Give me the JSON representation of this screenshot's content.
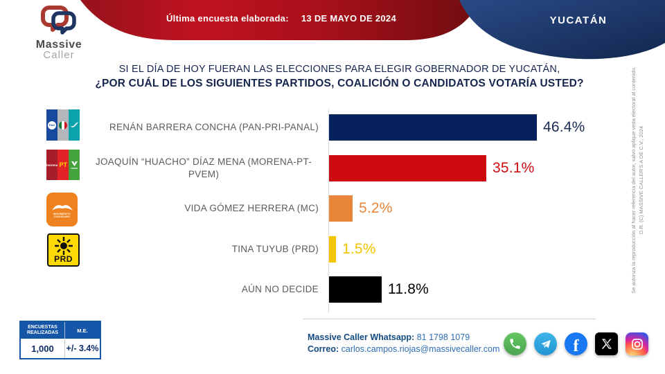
{
  "header": {
    "last_poll_label": "Última encuesta elaborada:",
    "last_poll_date": "13 DE MAYO DE 2024",
    "region": "YUCATÁN",
    "brand_name": "Massive",
    "brand_sub": "Caller"
  },
  "title": {
    "line1": "SI EL DÍA DE HOY FUERAN LAS ELECCIONES PARA ELEGIR GOBERNADOR DE YUCATÁN,",
    "line2": "¿POR CUÁL DE LOS SIGUIENTES PARTIDOS, COALICIÓN  O CANDIDATOS VOTARÍA USTED?"
  },
  "chart_data": {
    "type": "bar",
    "orientation": "horizontal",
    "xlabel": "",
    "ylabel": "",
    "xlim": [
      0,
      50
    ],
    "grid": false,
    "rows": [
      {
        "label": "RENÁN BARRERA CONCHA  (PAN-PRI-PANAL)",
        "value": 46.4,
        "value_label": "46.4%",
        "color": "#06215c",
        "logo": "pan-pri-panal"
      },
      {
        "label": "JOAQUÍN “HUACHO” DÍAZ MENA  (MORENA-PT-PVEM)",
        "value": 35.1,
        "value_label": "35.1%",
        "color": "#cd0a11",
        "logo": "morena-pt-pvem"
      },
      {
        "label": "VIDA GÓMEZ HERRERA (MC)",
        "value": 5.2,
        "value_label": "5.2%",
        "color": "#e8873c",
        "logo": "movimiento-ciudadano"
      },
      {
        "label": "TINA TUYUB (PRD)",
        "value": 1.5,
        "value_label": "1.5%",
        "color": "#f4c400",
        "logo": "prd"
      },
      {
        "label": "AÚN NO DECIDE",
        "value": 11.8,
        "value_label": "11.8%",
        "color": "#000000",
        "logo": null
      }
    ]
  },
  "logos": {
    "pan": "PAN",
    "pt": "PT",
    "morena": "morena",
    "verde": "VERDE",
    "mc_caption1": "MOVIMIENTO",
    "mc_caption2": "CIUDADANO",
    "prd": "PRD"
  },
  "stats": {
    "col1_header": "ENCUESTAS REALIZADAS",
    "col2_header": "M.E.",
    "col1_value": "1,000",
    "col2_value": "+/- 3.4%"
  },
  "contact": {
    "whatsapp_label": "Massive Caller Whatsapp:",
    "whatsapp_number": "81 1798 1079",
    "email_label": "Correo:",
    "email": "carlos.campos.riojas@massivecaller.com"
  },
  "social_icons": [
    "whatsapp",
    "telegram",
    "facebook",
    "x",
    "instagram"
  ],
  "legal": {
    "authorization": "Se autoriza la reproducción al hacer referencia del autor, salvo aplique veda electoral al contenido.",
    "copyright": "D.R. (C) MASSIVE CALLER'S A DE C.V., 2024"
  },
  "colors": {
    "ribbon_red": "#b41320",
    "ribbon_navy": "#1c3a6e",
    "bar_navy": "#06215c",
    "bar_red": "#cd0a11",
    "bar_orange": "#e8873c",
    "bar_yellow": "#f4c400",
    "bar_black": "#000000",
    "stats_header_blue": "#1656a8",
    "contact_blue": "#2d6db3"
  }
}
